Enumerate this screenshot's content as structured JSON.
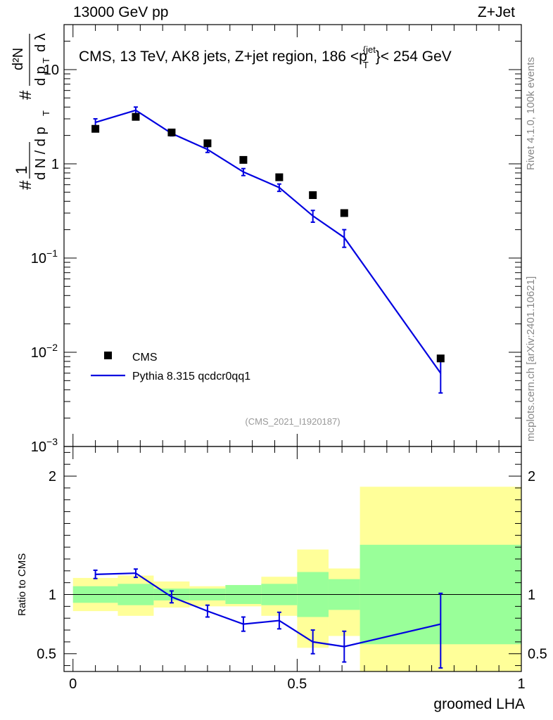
{
  "header": {
    "left": "13000 GeV pp",
    "right": "Z+Jet"
  },
  "side_labels": {
    "rivet": "Rivet 4.1.0,  100k events",
    "mcplots": "mcplots.cern.ch [arXiv:2401.10621]"
  },
  "chart_data": {
    "type": "line",
    "title": "CMS, 13 TeV, AK8 jets, Z+jet region, 186 <p_T^{jet}< 254 GeV",
    "watermark": "(CMS_2021_I1920187)",
    "xlabel": "groomed LHA",
    "ylabel": "1/(dN/dp_T) d²N/(dp_T dλ)",
    "ratio_ylabel": "Ratio to CMS",
    "xlim": [
      -0.02,
      1.0
    ],
    "ylim": [
      0.001,
      30
    ],
    "yscale": "log",
    "ratio_ylim": [
      0.35,
      2.25
    ],
    "x_ticks": [
      "0",
      "0.5",
      "1"
    ],
    "y_ticks": [
      "10",
      "1",
      "10^-1",
      "10^-2",
      "10^-3"
    ],
    "ratio_ticks": [
      "0.5",
      "1",
      "2"
    ],
    "legend": [
      "CMS",
      "Pythia 8.315 qcdcr0qq1"
    ],
    "colors": {
      "data": "#000000",
      "mc": "#0000e0",
      "band_inner": "#99ff99",
      "band_outer": "#ffff99"
    },
    "bins": [
      [
        0.0,
        0.1
      ],
      [
        0.1,
        0.18
      ],
      [
        0.18,
        0.26
      ],
      [
        0.26,
        0.34
      ],
      [
        0.34,
        0.42
      ],
      [
        0.42,
        0.5
      ],
      [
        0.5,
        0.57
      ],
      [
        0.57,
        0.64
      ],
      [
        0.64,
        1.0
      ]
    ],
    "data": {
      "name": "CMS",
      "x": [
        0.05,
        0.14,
        0.22,
        0.3,
        0.38,
        0.46,
        0.535,
        0.605,
        0.82
      ],
      "y": [
        2.35,
        3.15,
        2.15,
        1.65,
        1.1,
        0.72,
        0.465,
        0.3,
        0.0086
      ]
    },
    "mc": {
      "name": "Pythia 8.315 qcdcr0qq1",
      "x": [
        0.05,
        0.14,
        0.22,
        0.3,
        0.38,
        0.46,
        0.535,
        0.605,
        0.82
      ],
      "y": [
        2.75,
        3.7,
        2.1,
        1.42,
        0.82,
        0.56,
        0.28,
        0.165,
        0.006
      ],
      "err_lo": [
        0.25,
        0.3,
        0.12,
        0.1,
        0.07,
        0.05,
        0.04,
        0.035,
        0.0023
      ],
      "err_hi": [
        0.25,
        0.3,
        0.12,
        0.1,
        0.07,
        0.05,
        0.04,
        0.035,
        0.0025
      ]
    },
    "ratio": {
      "y": [
        1.17,
        1.18,
        0.98,
        0.86,
        0.75,
        0.78,
        0.6,
        0.56,
        0.75
      ],
      "err_lo": [
        0.035,
        0.035,
        0.05,
        0.05,
        0.06,
        0.07,
        0.1,
        0.13,
        0.37
      ],
      "err_hi": [
        0.035,
        0.035,
        0.05,
        0.05,
        0.06,
        0.07,
        0.1,
        0.13,
        0.26
      ],
      "band_inner_lo": [
        0.93,
        0.91,
        0.95,
        0.95,
        0.92,
        0.91,
        0.81,
        0.87,
        0.58
      ],
      "band_inner_hi": [
        1.07,
        1.09,
        1.05,
        1.05,
        1.08,
        1.09,
        1.19,
        1.13,
        1.42
      ],
      "band_outer_lo": [
        0.86,
        0.82,
        0.89,
        0.9,
        0.9,
        0.82,
        0.55,
        0.65,
        0.35
      ],
      "band_outer_hi": [
        1.14,
        1.16,
        1.11,
        1.07,
        1.08,
        1.15,
        1.38,
        1.22,
        1.91
      ]
    }
  }
}
